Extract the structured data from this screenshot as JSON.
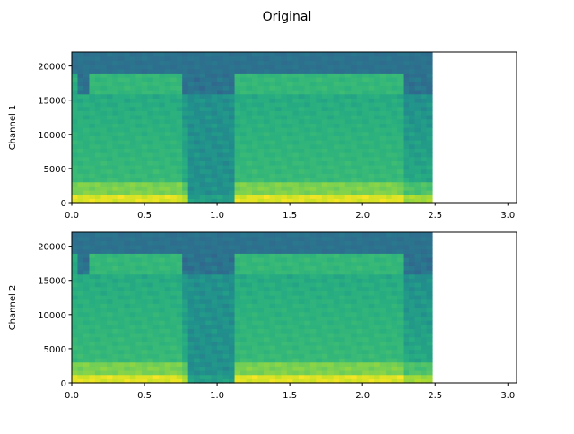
{
  "chart_data": {
    "type": "heatmap",
    "title": "Original",
    "colormap": "viridis",
    "xlim": [
      0,
      3.06
    ],
    "ylim": [
      0,
      22050
    ],
    "data_time_range": [
      0,
      2.48
    ],
    "xticks": [
      "0.0",
      "0.5",
      "1.0",
      "1.5",
      "2.0",
      "2.5",
      "3.0"
    ],
    "xtick_values": [
      0,
      0.5,
      1.0,
      1.5,
      2.0,
      2.5,
      3.0
    ],
    "yticks": [
      "0",
      "5000",
      "10000",
      "15000",
      "20000"
    ],
    "ytick_values": [
      0,
      5000,
      10000,
      15000,
      20000
    ],
    "active_segments": [
      [
        0.0,
        0.8
      ],
      [
        1.1,
        2.48
      ]
    ],
    "upper_band_active_segments": [
      [
        0.12,
        0.77
      ],
      [
        1.11,
        2.27
      ]
    ],
    "quiet_segment": [
      0.82,
      1.1
    ],
    "levels": {
      "low_band": 0.95,
      "mid_low": 0.78,
      "mid": 0.66,
      "upper_active": 0.62,
      "upper_inactive": 0.35,
      "top": 0.35,
      "quiet": 0.45
    },
    "panels": [
      {
        "ylabel": "Channel 1"
      },
      {
        "ylabel": "Channel 2"
      }
    ]
  }
}
